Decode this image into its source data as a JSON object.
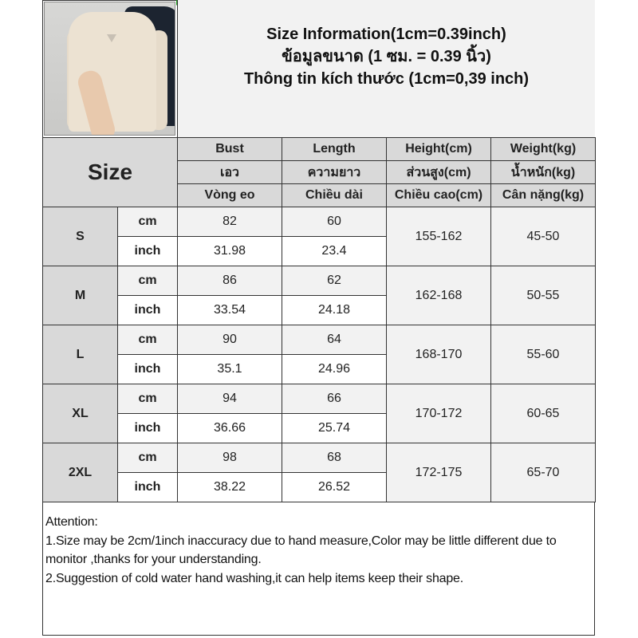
{
  "title_lines": [
    "Size Information(1cm=0.39inch)",
    "ข้อมูลขนาด (1 ซม. = 0.39 นิ้ว)",
    "Thông tin kích thước (1cm=0,39 inch)"
  ],
  "header": {
    "size_label": "Size",
    "columns": [
      {
        "en": "Bust",
        "th": "เอว",
        "vi": "Vòng eo"
      },
      {
        "en": "Length",
        "th": "ความยาว",
        "vi": "Chiều dài"
      },
      {
        "en": "Height(cm)",
        "th": "ส่วนสูง(cm)",
        "vi": "Chiều cao(cm)"
      },
      {
        "en": "Weight(kg)",
        "th": "น้ำหนัก(kg)",
        "vi": "Cân nặng(kg)"
      }
    ]
  },
  "units": {
    "cm": "cm",
    "inch": "inch"
  },
  "rows": [
    {
      "size": "S",
      "cm": {
        "bust": "82",
        "length": "60"
      },
      "inch": {
        "bust": "31.98",
        "length": "23.4"
      },
      "height": "155-162",
      "weight": "45-50"
    },
    {
      "size": "M",
      "cm": {
        "bust": "86",
        "length": "62"
      },
      "inch": {
        "bust": "33.54",
        "length": "24.18"
      },
      "height": "162-168",
      "weight": "50-55"
    },
    {
      "size": "L",
      "cm": {
        "bust": "90",
        "length": "64"
      },
      "inch": {
        "bust": "35.1",
        "length": "24.96"
      },
      "height": "168-170",
      "weight": "55-60"
    },
    {
      "size": "XL",
      "cm": {
        "bust": "94",
        "length": "66"
      },
      "inch": {
        "bust": "36.66",
        "length": "25.74"
      },
      "height": "170-172",
      "weight": "60-65"
    },
    {
      "size": "2XL",
      "cm": {
        "bust": "98",
        "length": "68"
      },
      "inch": {
        "bust": "38.22",
        "length": "26.52"
      },
      "height": "172-175",
      "weight": "65-70"
    }
  ],
  "notes": {
    "heading": "Attention:",
    "line1": "1.Size may be 2cm/1inch inaccuracy due to hand measure,Color may be little different due to monitor ,thanks for your understanding.",
    "line2": "2.Suggestion of cold water hand washing,it can help items keep their shape."
  },
  "colors": {
    "header_bg": "#d9d9d9",
    "cm_row_bg": "#f2f2f2",
    "title_bg": "#f2f2f2"
  }
}
